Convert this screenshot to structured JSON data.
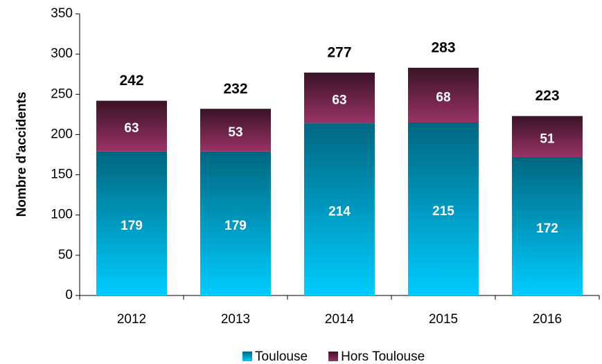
{
  "chart_data": {
    "type": "stacked_bar",
    "y_axis_label": "Nombre d'accidents",
    "categories": [
      "2012",
      "2013",
      "2014",
      "2015",
      "2016"
    ],
    "series": [
      {
        "name": "Toulouse",
        "color": "#00ccff",
        "values": [
          179,
          179,
          214,
          215,
          172
        ]
      },
      {
        "name": "Hors Toulouse",
        "color": "#993366",
        "values": [
          63,
          53,
          63,
          68,
          51
        ]
      }
    ],
    "totals": [
      242,
      232,
      277,
      283,
      223
    ],
    "ylim": [
      0,
      350
    ],
    "yticks": [
      0,
      50,
      100,
      150,
      200,
      250,
      300,
      350
    ],
    "legend": "bottom",
    "grid": false
  }
}
